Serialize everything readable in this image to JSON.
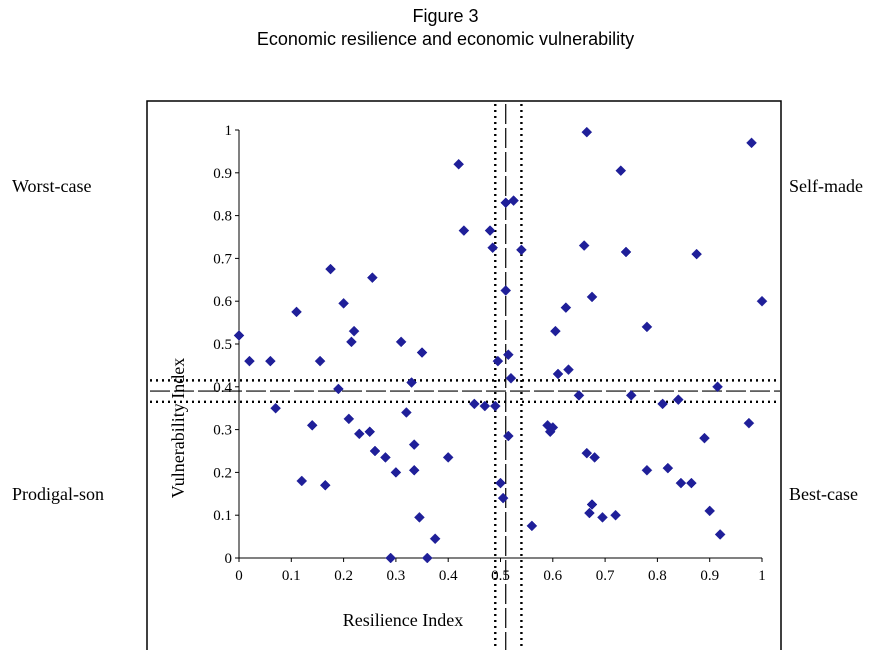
{
  "figure": {
    "number": "Figure 3",
    "title": "Economic resilience and economic vulnerability"
  },
  "quadrants": {
    "top_left": "Worst-case",
    "top_right": "Self-made",
    "bottom_left": "Prodigal-son",
    "bottom_right": "Best-case"
  },
  "chart_data": {
    "type": "scatter",
    "xlabel": "Resilience Index",
    "ylabel": "Vulnerability Index",
    "xlim": [
      0,
      1
    ],
    "ylim": [
      0,
      1
    ],
    "xticks": [
      "0",
      "0.1",
      "0.2",
      "0.3",
      "0.4",
      "0.5",
      "0.6",
      "0.7",
      "0.8",
      "0.9",
      "1"
    ],
    "yticks": [
      "0",
      "0.1",
      "0.2",
      "0.3",
      "0.4",
      "0.5",
      "0.6",
      "0.7",
      "0.8",
      "0.9",
      "1"
    ],
    "marker_color": "#1f1f99",
    "reference_lines": {
      "x_mean": 0.51,
      "x_band": [
        0.49,
        0.54
      ],
      "y_mean": 0.39,
      "y_band": [
        0.365,
        0.415
      ]
    },
    "points": [
      [
        0.0,
        0.52
      ],
      [
        0.02,
        0.46
      ],
      [
        0.06,
        0.46
      ],
      [
        0.07,
        0.35
      ],
      [
        0.11,
        0.575
      ],
      [
        0.12,
        0.18
      ],
      [
        0.14,
        0.31
      ],
      [
        0.155,
        0.46
      ],
      [
        0.165,
        0.17
      ],
      [
        0.175,
        0.675
      ],
      [
        0.19,
        0.395
      ],
      [
        0.2,
        0.595
      ],
      [
        0.21,
        0.325
      ],
      [
        0.215,
        0.505
      ],
      [
        0.22,
        0.53
      ],
      [
        0.23,
        0.29
      ],
      [
        0.25,
        0.295
      ],
      [
        0.255,
        0.655
      ],
      [
        0.26,
        0.25
      ],
      [
        0.28,
        0.235
      ],
      [
        0.29,
        0.0
      ],
      [
        0.3,
        0.2
      ],
      [
        0.31,
        0.505
      ],
      [
        0.32,
        0.34
      ],
      [
        0.33,
        0.41
      ],
      [
        0.335,
        0.265
      ],
      [
        0.335,
        0.205
      ],
      [
        0.345,
        0.095
      ],
      [
        0.35,
        0.48
      ],
      [
        0.36,
        0.0
      ],
      [
        0.375,
        0.045
      ],
      [
        0.4,
        0.235
      ],
      [
        0.42,
        0.92
      ],
      [
        0.43,
        0.765
      ],
      [
        0.45,
        0.36
      ],
      [
        0.47,
        0.355
      ],
      [
        0.48,
        0.765
      ],
      [
        0.485,
        0.725
      ],
      [
        0.49,
        0.355
      ],
      [
        0.495,
        0.46
      ],
      [
        0.5,
        0.175
      ],
      [
        0.505,
        0.14
      ],
      [
        0.51,
        0.625
      ],
      [
        0.51,
        0.83
      ],
      [
        0.515,
        0.285
      ],
      [
        0.515,
        0.475
      ],
      [
        0.52,
        0.42
      ],
      [
        0.525,
        0.835
      ],
      [
        0.54,
        0.72
      ],
      [
        0.56,
        0.075
      ],
      [
        0.59,
        0.31
      ],
      [
        0.595,
        0.295
      ],
      [
        0.6,
        0.305
      ],
      [
        0.605,
        0.53
      ],
      [
        0.61,
        0.43
      ],
      [
        0.625,
        0.585
      ],
      [
        0.63,
        0.44
      ],
      [
        0.65,
        0.38
      ],
      [
        0.66,
        0.73
      ],
      [
        0.665,
        0.995
      ],
      [
        0.665,
        0.245
      ],
      [
        0.67,
        0.105
      ],
      [
        0.675,
        0.125
      ],
      [
        0.675,
        0.61
      ],
      [
        0.68,
        0.235
      ],
      [
        0.695,
        0.095
      ],
      [
        0.72,
        0.1
      ],
      [
        0.73,
        0.905
      ],
      [
        0.74,
        0.715
      ],
      [
        0.75,
        0.38
      ],
      [
        0.78,
        0.54
      ],
      [
        0.78,
        0.205
      ],
      [
        0.81,
        0.36
      ],
      [
        0.82,
        0.21
      ],
      [
        0.84,
        0.37
      ],
      [
        0.845,
        0.175
      ],
      [
        0.865,
        0.175
      ],
      [
        0.875,
        0.71
      ],
      [
        0.89,
        0.28
      ],
      [
        0.9,
        0.11
      ],
      [
        0.915,
        0.4
      ],
      [
        0.92,
        0.055
      ],
      [
        0.975,
        0.315
      ],
      [
        0.98,
        0.97
      ],
      [
        1.0,
        0.6
      ]
    ]
  }
}
